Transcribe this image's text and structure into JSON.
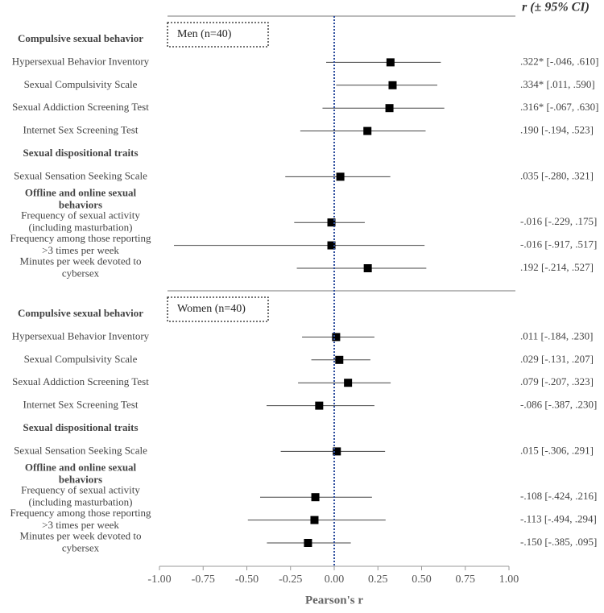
{
  "chart_data": {
    "type": "forest",
    "column_title": "r (± 95% CI)",
    "x_label": "Pearson's r",
    "xlim": [
      -1,
      1
    ],
    "xticks": [
      {
        "value": -1,
        "label": "-1.00"
      },
      {
        "value": -0.75,
        "label": "-0.75"
      },
      {
        "value": -0.5,
        "label": "-0.50"
      },
      {
        "value": -0.25,
        "label": "-0.25"
      },
      {
        "value": 0,
        "label": "0.00"
      },
      {
        "value": 0.25,
        "label": "0.25"
      },
      {
        "value": 0.5,
        "label": "0.50"
      },
      {
        "value": 0.75,
        "label": "0.75"
      },
      {
        "value": 1,
        "label": "1.00"
      }
    ],
    "reference_line": 0,
    "marker_color": "#000000",
    "reference_color": "#2e4e9e",
    "panels": [
      {
        "name": "Men (n=40)",
        "groups": [
          {
            "name": [
              "Compulsive sexual behavior"
            ],
            "items": [
              {
                "label": [
                  "Hypersexual Behavior Inventory"
                ],
                "r": 0.322,
                "lo": -0.046,
                "hi": 0.61,
                "value_label": ".322* [-.046, .610]"
              },
              {
                "label": [
                  "Sexual Compulsivity Scale"
                ],
                "r": 0.334,
                "lo": 0.011,
                "hi": 0.59,
                "value_label": ".334* [.011, .590]"
              },
              {
                "label": [
                  "Sexual Addiction Screening Test"
                ],
                "r": 0.316,
                "lo": -0.067,
                "hi": 0.63,
                "value_label": ".316* [-.067, .630]"
              },
              {
                "label": [
                  "Internet Sex Screening Test"
                ],
                "r": 0.19,
                "lo": -0.194,
                "hi": 0.523,
                "value_label": ".190 [-.194, .523]"
              }
            ]
          },
          {
            "name": [
              "Sexual dispositional traits"
            ],
            "items": [
              {
                "label": [
                  "Sexual Sensation Seeking Scale"
                ],
                "r": 0.035,
                "lo": -0.28,
                "hi": 0.321,
                "value_label": ".035 [-.280, .321]"
              }
            ]
          },
          {
            "name": [
              "Offline and online sexual",
              "behaviors"
            ],
            "items": [
              {
                "label": [
                  "Frequency of sexual activity",
                  "(including masturbation)"
                ],
                "r": -0.016,
                "lo": -0.229,
                "hi": 0.175,
                "value_label": "-.016 [-.229, .175]"
              },
              {
                "label": [
                  "Frequency among those reporting",
                  ">3 times per week"
                ],
                "r": -0.016,
                "lo": -0.917,
                "hi": 0.517,
                "value_label": "-.016 [-.917, .517]"
              },
              {
                "label": [
                  "Minutes per week devoted to",
                  "cybersex"
                ],
                "r": 0.192,
                "lo": -0.214,
                "hi": 0.527,
                "value_label": ".192 [-.214, .527]"
              }
            ]
          }
        ]
      },
      {
        "name": "Women (n=40)",
        "groups": [
          {
            "name": [
              "Compulsive sexual behavior"
            ],
            "items": [
              {
                "label": [
                  "Hypersexual Behavior Inventory"
                ],
                "r": 0.011,
                "lo": -0.184,
                "hi": 0.23,
                "value_label": ".011 [-.184, .230]"
              },
              {
                "label": [
                  "Sexual Compulsivity Scale"
                ],
                "r": 0.029,
                "lo": -0.131,
                "hi": 0.207,
                "value_label": ".029 [-.131, .207]"
              },
              {
                "label": [
                  "Sexual Addiction Screening Test"
                ],
                "r": 0.079,
                "lo": -0.207,
                "hi": 0.323,
                "value_label": ".079 [-.207, .323]"
              },
              {
                "label": [
                  "Internet Sex Screening Test"
                ],
                "r": -0.086,
                "lo": -0.387,
                "hi": 0.23,
                "value_label": "-.086 [-.387, .230]"
              }
            ]
          },
          {
            "name": [
              "Sexual dispositional traits"
            ],
            "items": [
              {
                "label": [
                  "Sexual Sensation Seeking Scale"
                ],
                "r": 0.015,
                "lo": -0.306,
                "hi": 0.291,
                "value_label": ".015 [-.306, .291]"
              }
            ]
          },
          {
            "name": [
              "Offline and online sexual",
              "behaviors"
            ],
            "items": [
              {
                "label": [
                  "Frequency of sexual activity",
                  "(including masturbation)"
                ],
                "r": -0.108,
                "lo": -0.424,
                "hi": 0.216,
                "value_label": "-.108 [-.424, .216]"
              },
              {
                "label": [
                  "Frequency among those reporting",
                  ">3 times per week"
                ],
                "r": -0.113,
                "lo": -0.494,
                "hi": 0.294,
                "value_label": "-.113 [-.494, .294]"
              },
              {
                "label": [
                  "Minutes per week devoted to",
                  "cybersex"
                ],
                "r": -0.15,
                "lo": -0.385,
                "hi": 0.095,
                "value_label": "-.150 [-.385, .095]"
              }
            ]
          }
        ]
      }
    ]
  }
}
